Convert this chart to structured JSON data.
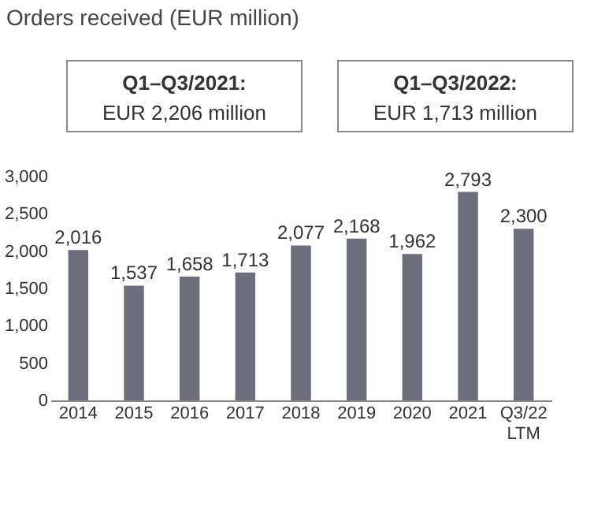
{
  "chart_data": {
    "type": "bar",
    "title": "Orders received (EUR million)",
    "annotations": [
      "Q1–Q3/2021:",
      "EUR 2,206 million",
      "Q1–Q3/2022:",
      "EUR 1,713 million"
    ],
    "categories": [
      "2014",
      "2015",
      "2016",
      "2017",
      "2018",
      "2019",
      "2020",
      "2021",
      "Q3/22\nLTM"
    ],
    "values": [
      2016,
      1537,
      1658,
      1713,
      2077,
      2168,
      1962,
      2793,
      2300
    ],
    "value_labels": [
      "2,016",
      "1,537",
      "1,658",
      "1,713",
      "2,077",
      "2,168",
      "1,962",
      "2,793",
      "2,300"
    ],
    "color": "#6c6f7b",
    "ylim": [
      0,
      3000
    ],
    "yticks": [
      {
        "value": 0,
        "label": "0"
      },
      {
        "value": 500,
        "label": "500"
      },
      {
        "value": 1000,
        "label": "1,000"
      },
      {
        "value": 1500,
        "label": "1,500"
      },
      {
        "value": 2000,
        "label": "2,000"
      },
      {
        "value": 2500,
        "label": "2,500"
      },
      {
        "value": 3000,
        "label": "3,000"
      }
    ],
    "grid": false
  }
}
